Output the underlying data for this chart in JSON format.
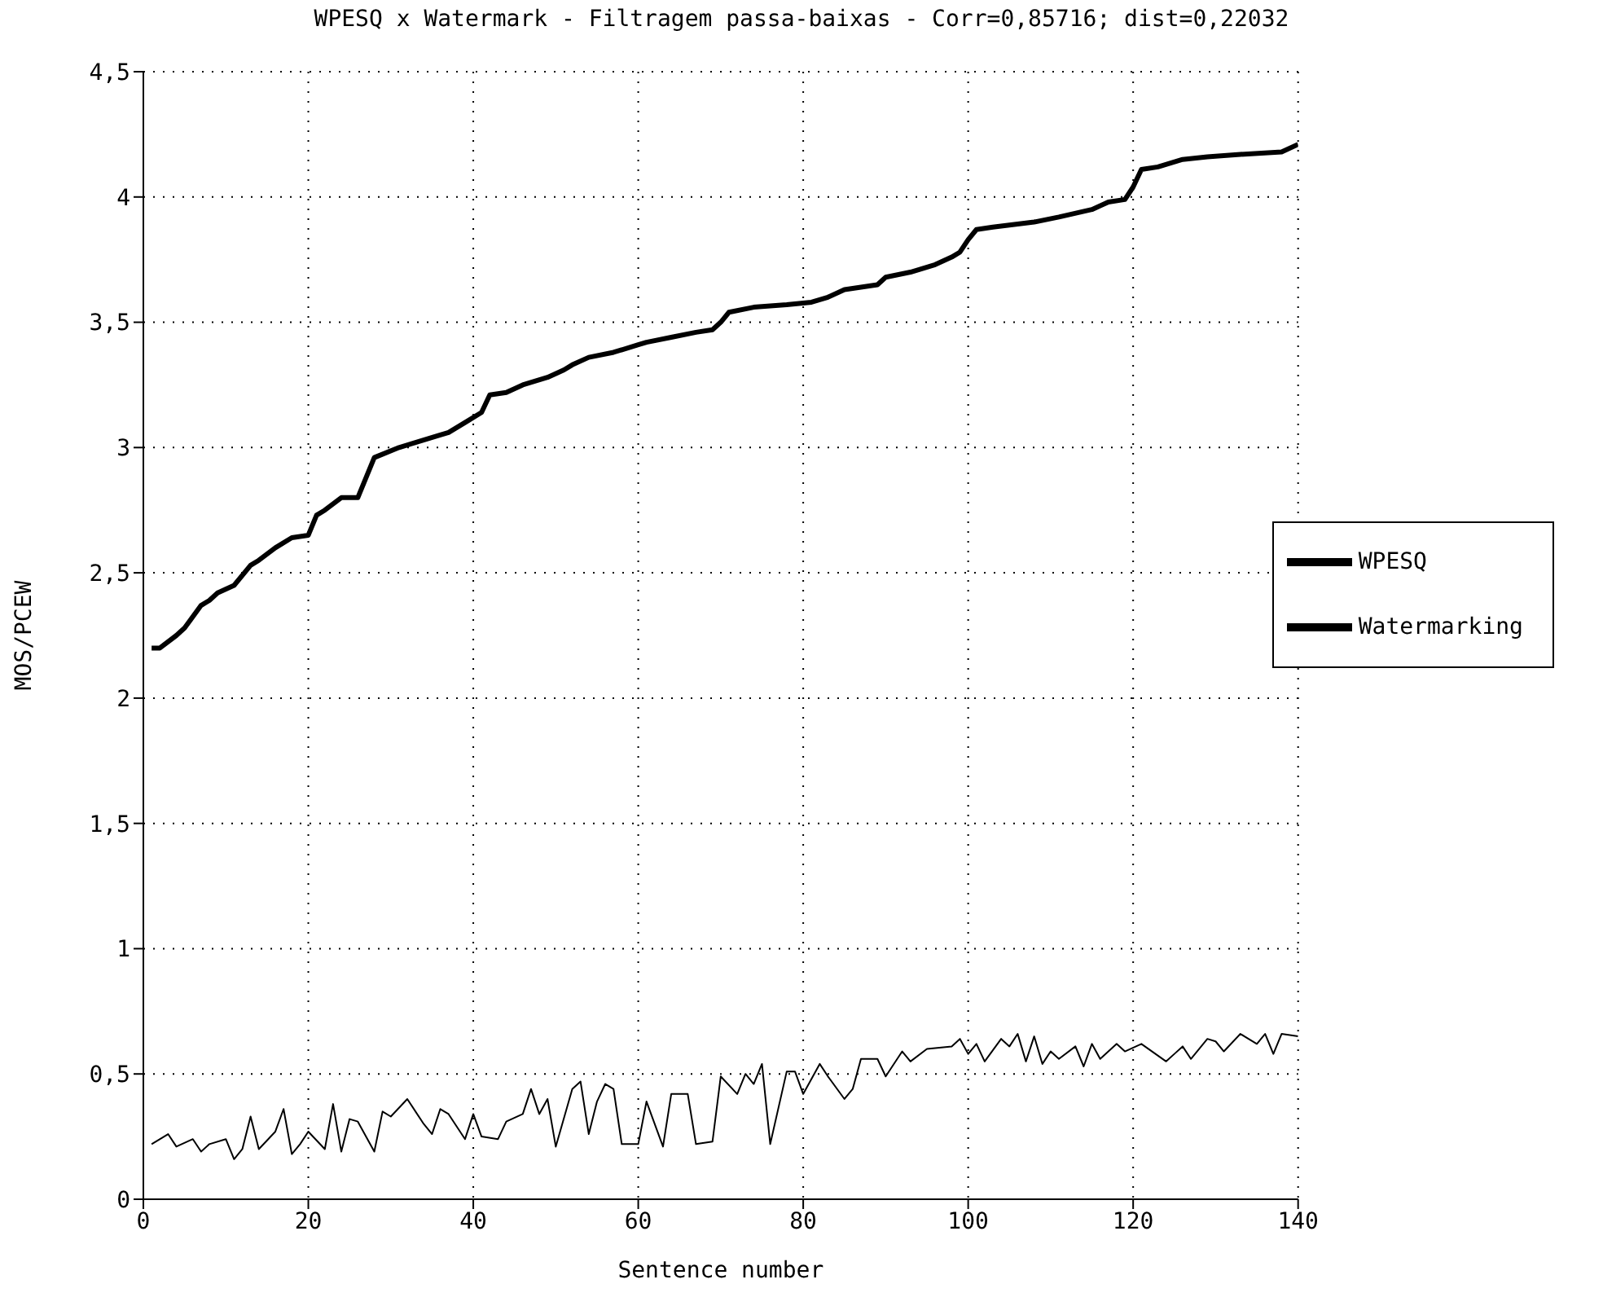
{
  "chart_data": {
    "type": "line",
    "title": "WPESQ x Watermark - Filtragem passa-baixas - Corr=0,85716; dist=0,22032",
    "xlabel": "Sentence number",
    "ylabel": "MOS/PCEW",
    "xlim": [
      0,
      140
    ],
    "xticks": [
      0,
      20,
      40,
      60,
      80,
      100,
      120,
      140
    ],
    "ylim": [
      0,
      4.5
    ],
    "yticks": [
      0,
      {
        "value": 0.5,
        "label": "0,5"
      },
      1,
      {
        "value": 1.5,
        "label": "1,5"
      },
      2,
      {
        "value": 2.5,
        "label": "2,5"
      },
      3,
      {
        "value": 3.5,
        "label": "3,5"
      },
      4,
      {
        "value": 4.5,
        "label": "4,5"
      }
    ],
    "grid": true,
    "legend": "right",
    "line_style": "solid",
    "marker": "none",
    "series": [
      {
        "name": "WPESQ",
        "color": "#000000",
        "x": [
          1,
          2,
          4,
          5,
          7,
          8,
          9,
          11,
          13,
          14,
          16,
          18,
          20,
          21,
          22,
          24,
          26,
          28,
          31,
          33,
          36,
          37,
          39,
          41,
          42,
          44,
          46,
          49,
          51,
          52,
          54,
          57,
          60,
          61,
          64,
          67,
          69,
          70,
          71,
          74,
          78,
          81,
          83,
          85,
          89,
          90,
          93,
          96,
          98,
          99,
          100,
          101,
          103,
          108,
          111,
          115,
          117,
          119,
          120,
          121,
          123,
          126,
          129,
          133,
          138,
          140
        ],
        "values": [
          2.2,
          2.2,
          2.25,
          2.28,
          2.37,
          2.39,
          2.42,
          2.45,
          2.53,
          2.55,
          2.6,
          2.64,
          2.65,
          2.73,
          2.75,
          2.8,
          2.8,
          2.96,
          3.0,
          3.02,
          3.05,
          3.06,
          3.1,
          3.14,
          3.21,
          3.22,
          3.25,
          3.28,
          3.31,
          3.33,
          3.36,
          3.38,
          3.41,
          3.42,
          3.44,
          3.46,
          3.47,
          3.5,
          3.54,
          3.56,
          3.57,
          3.58,
          3.6,
          3.63,
          3.65,
          3.68,
          3.7,
          3.73,
          3.76,
          3.78,
          3.83,
          3.87,
          3.88,
          3.9,
          3.92,
          3.95,
          3.98,
          3.99,
          4.04,
          4.11,
          4.12,
          4.15,
          4.16,
          4.17,
          4.18,
          4.21
        ]
      },
      {
        "name": "Watermarking",
        "color": "#000000",
        "x": [
          1,
          3,
          4,
          6,
          7,
          8,
          10,
          11,
          12,
          13,
          14,
          16,
          17,
          18,
          19,
          20,
          22,
          23,
          24,
          25,
          26,
          28,
          29,
          30,
          32,
          34,
          35,
          36,
          37,
          39,
          40,
          41,
          43,
          44,
          46,
          47,
          48,
          49,
          50,
          52,
          53,
          54,
          55,
          56,
          57,
          58,
          60,
          61,
          63,
          64,
          66,
          67,
          69,
          70,
          72,
          73,
          74,
          75,
          76,
          78,
          79,
          80,
          82,
          83,
          85,
          86,
          87,
          89,
          90,
          92,
          93,
          95,
          98,
          99,
          100,
          101,
          102,
          104,
          105,
          106,
          107,
          108,
          109,
          110,
          111,
          113,
          114,
          115,
          116,
          118,
          119,
          121,
          124,
          125,
          126,
          127,
          129,
          130,
          131,
          133,
          135,
          136,
          137,
          138,
          140
        ],
        "values": [
          0.22,
          0.26,
          0.21,
          0.24,
          0.19,
          0.22,
          0.24,
          0.16,
          0.2,
          0.33,
          0.2,
          0.27,
          0.36,
          0.18,
          0.22,
          0.27,
          0.2,
          0.38,
          0.19,
          0.32,
          0.31,
          0.19,
          0.35,
          0.33,
          0.4,
          0.3,
          0.26,
          0.36,
          0.34,
          0.24,
          0.34,
          0.25,
          0.24,
          0.31,
          0.34,
          0.44,
          0.34,
          0.4,
          0.21,
          0.44,
          0.47,
          0.26,
          0.39,
          0.46,
          0.44,
          0.22,
          0.22,
          0.39,
          0.21,
          0.42,
          0.42,
          0.22,
          0.23,
          0.49,
          0.42,
          0.5,
          0.46,
          0.54,
          0.22,
          0.51,
          0.51,
          0.42,
          0.54,
          0.49,
          0.4,
          0.44,
          0.56,
          0.56,
          0.49,
          0.59,
          0.55,
          0.6,
          0.61,
          0.64,
          0.58,
          0.62,
          0.55,
          0.64,
          0.61,
          0.66,
          0.55,
          0.65,
          0.54,
          0.59,
          0.56,
          0.61,
          0.53,
          0.62,
          0.56,
          0.62,
          0.59,
          0.62,
          0.55,
          0.58,
          0.61,
          0.56,
          0.64,
          0.63,
          0.59,
          0.66,
          0.62,
          0.66,
          0.58,
          0.66,
          0.65
        ]
      }
    ]
  }
}
